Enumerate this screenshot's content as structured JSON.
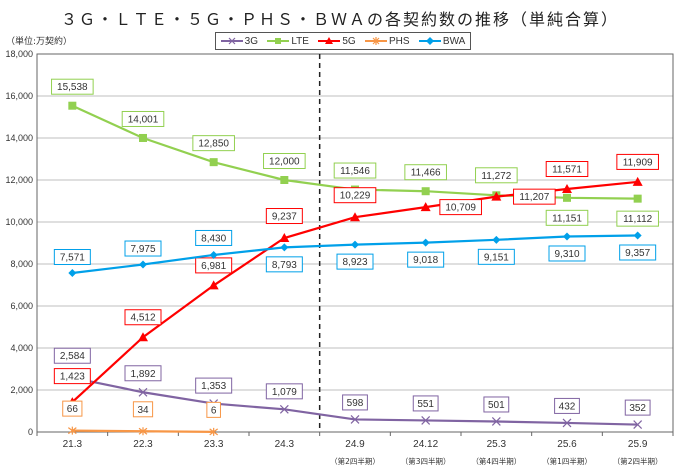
{
  "chart_data": {
    "type": "line",
    "title": "３Ｇ・ＬＴＥ・５Ｇ・ＰＨＳ・ＢＷＡの各契約数の推移（単純合算）",
    "ylabel": "（単位:万契約）",
    "xlabel": "",
    "ylim": [
      0,
      18000
    ],
    "yticks": [
      0,
      2000,
      4000,
      6000,
      8000,
      10000,
      12000,
      14000,
      16000,
      18000
    ],
    "ytick_labels": [
      "0",
      "2,000",
      "4,000",
      "6,000",
      "8,000",
      "10,000",
      "12,000",
      "14,000",
      "16,000",
      "18,000"
    ],
    "categories": [
      "21.3",
      "22.3",
      "23.3",
      "24.3",
      "24.9",
      "24.12",
      "25.3",
      "25.6",
      "25.9"
    ],
    "category_sublabels": [
      "",
      "",
      "",
      "",
      "（第2四半期）",
      "（第3四半期）",
      "（第4四半期）",
      "（第1四半期）",
      "（第2四半期）"
    ],
    "divider_after_category": "24.3",
    "grid": true,
    "legend_position": "top-center",
    "series": [
      {
        "name": "3G",
        "color": "#8064a2",
        "marker": "x",
        "values": [
          2584,
          1892,
          1353,
          1079,
          598,
          551,
          501,
          432,
          352
        ],
        "labels": [
          "2,584",
          "1,892",
          "1,353",
          "1,079",
          "598",
          "551",
          "501",
          "432",
          "352"
        ]
      },
      {
        "name": "LTE",
        "color": "#92d050",
        "marker": "square",
        "values": [
          15538,
          14001,
          12850,
          12000,
          11546,
          11466,
          11272,
          11151,
          11112
        ],
        "labels": [
          "15,538",
          "14,001",
          "12,850",
          "12,000",
          "11,546",
          "11,466",
          "11,272",
          "11,151",
          "11,112"
        ]
      },
      {
        "name": "5G",
        "color": "#ff0000",
        "marker": "triangle",
        "values": [
          1423,
          4512,
          6981,
          9237,
          10229,
          10709,
          11207,
          11571,
          11909
        ],
        "labels": [
          "1,423",
          "4,512",
          "6,981",
          "9,237",
          "10,229",
          "10,709",
          "11,207",
          "11,571",
          "11,909"
        ]
      },
      {
        "name": "PHS",
        "color": "#f79646",
        "marker": "asterisk",
        "values": [
          66,
          34,
          6,
          null,
          null,
          null,
          null,
          null,
          null
        ],
        "labels": [
          "66",
          "34",
          "6",
          null,
          null,
          null,
          null,
          null,
          null
        ]
      },
      {
        "name": "BWA",
        "color": "#00a0e9",
        "marker": "diamond",
        "values": [
          7571,
          7975,
          8430,
          8793,
          8923,
          9018,
          9151,
          9310,
          9357
        ],
        "labels": [
          "7,571",
          "7,975",
          "8,430",
          "8,793",
          "8,923",
          "9,018",
          "9,151",
          "9,310",
          "9,357"
        ]
      }
    ]
  }
}
